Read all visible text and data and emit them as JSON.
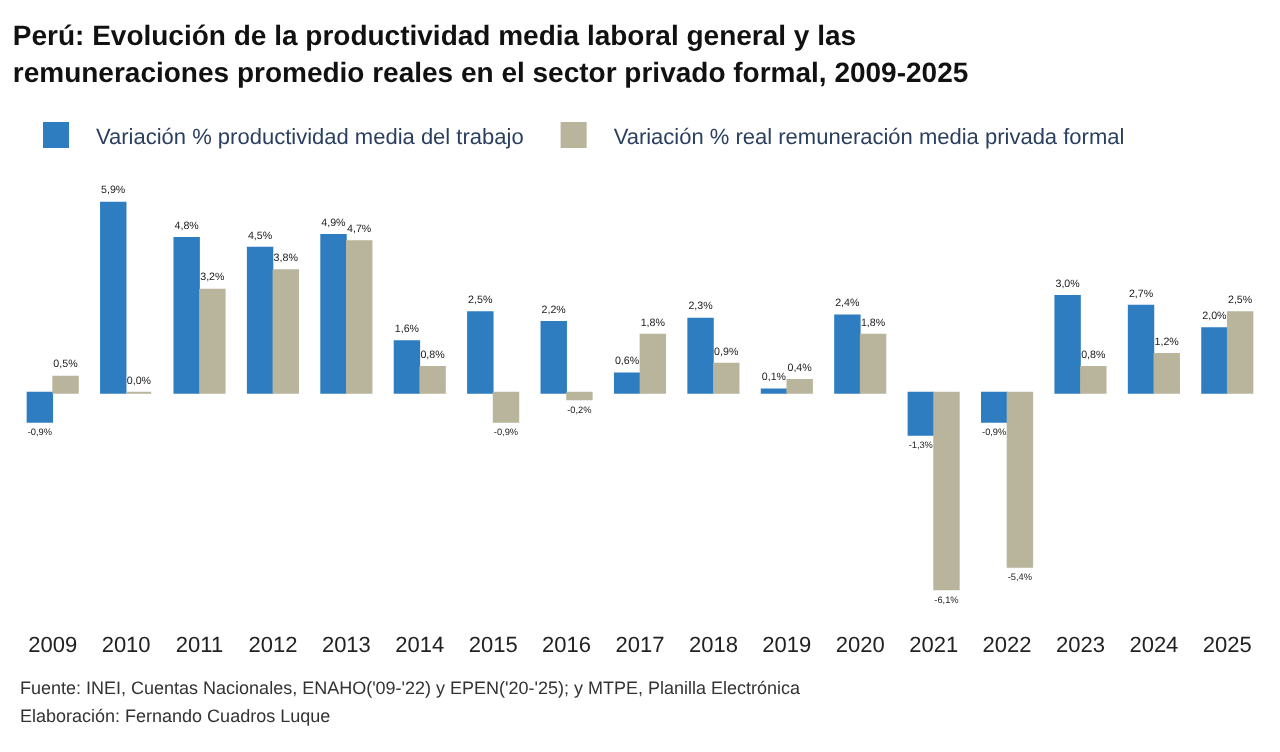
{
  "chart_data": {
    "type": "bar",
    "title": "Perú: Evolución de la productividad media laboral general y las\nremuneraciones promedio reales en el sector privado formal, 2009-2025",
    "categories": [
      "2009",
      "2010",
      "2011",
      "2012",
      "2013",
      "2014",
      "2015",
      "2016",
      "2017",
      "2018",
      "2019",
      "2020",
      "2021",
      "2022",
      "2023",
      "2024",
      "2025"
    ],
    "series": [
      {
        "name": "Variación % productividad media del trabajo",
        "color": "#2e7dc0",
        "values": [
          -0.9,
          5.9,
          4.8,
          4.5,
          4.9,
          1.6,
          2.5,
          2.2,
          0.6,
          2.3,
          0.1,
          2.4,
          -1.3,
          -0.9,
          3.0,
          2.7,
          2.0
        ],
        "value_labels": [
          "-0,9%",
          "5,9%",
          "4,8%",
          "4,5%",
          "4,9%",
          "1,6%",
          "2,5%",
          "2,2%",
          "0,6%",
          "2,3%",
          "0,1%",
          "2,4%",
          "-1,3%",
          "-0,9%",
          "3,0%",
          "2,7%",
          "2,0%"
        ]
      },
      {
        "name": "Variación % real remuneración media privada formal",
        "color": "#b8b59c",
        "values": [
          0.5,
          0.0,
          3.2,
          3.8,
          4.7,
          0.8,
          -0.9,
          -0.2,
          1.8,
          0.9,
          0.4,
          1.8,
          -6.1,
          -5.4,
          0.8,
          1.2,
          2.5
        ],
        "value_labels": [
          "0,5%",
          "0,0%",
          "3,2%",
          "3,8%",
          "4,7%",
          "0,8%",
          "-0,9%",
          "-0,2%",
          "1,8%",
          "0,9%",
          "0,4%",
          "1,8%",
          "-6,1%",
          "-5,4%",
          "0,8%",
          "1,2%",
          "2,5%"
        ]
      }
    ],
    "legend": "top left",
    "annotations": [
      "Fuente: INEI, Cuentas Nacionales, ENAHO('09-'22) y EPEN('20-'25); y MTPE, Planilla Electrónica",
      "Elaboración: Fernando Cuadros Luque"
    ]
  }
}
